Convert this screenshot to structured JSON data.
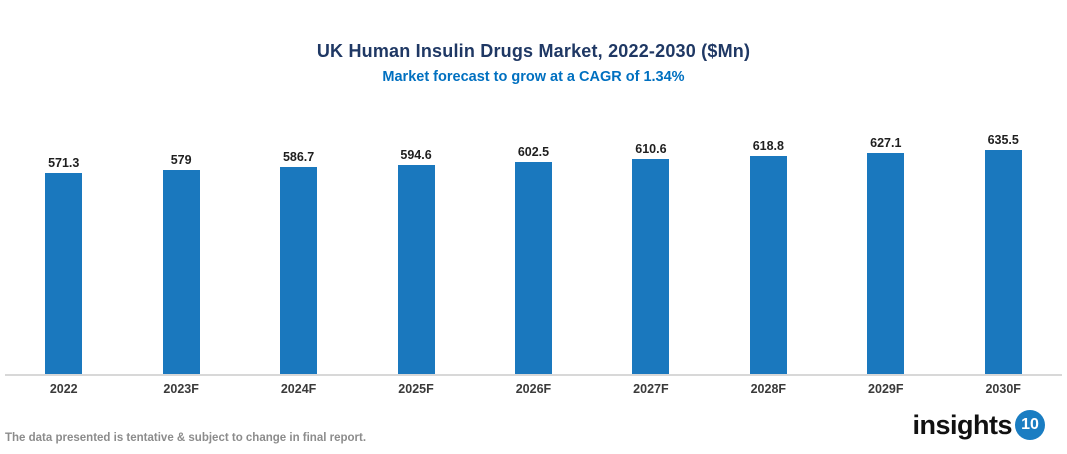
{
  "chart_data": {
    "type": "bar",
    "title": "UK Human Insulin Drugs Market, 2022-2030 ($Mn)",
    "subtitle": "Market forecast to grow at a CAGR of 1.34%",
    "categories": [
      "2022",
      "2023F",
      "2024F",
      "2025F",
      "2026F",
      "2027F",
      "2028F",
      "2029F",
      "2030F"
    ],
    "values": [
      571.3,
      579,
      586.7,
      594.6,
      602.5,
      610.6,
      618.8,
      627.1,
      635.5
    ],
    "value_labels": [
      "571.3",
      "579",
      "586.7",
      "594.6",
      "602.5",
      "610.6",
      "618.8",
      "627.1",
      "635.5"
    ],
    "xlabel": "",
    "ylabel": "",
    "ylim": [
      0,
      650
    ],
    "grid": false,
    "legend": false,
    "bar_color": "#1a78be",
    "axis_line_color": "#d8d8d8"
  },
  "colors": {
    "title": "#1f3864",
    "subtitle": "#0070c0",
    "bar_color": "#1a78be",
    "axis_line_color": "#d8d8d8",
    "label": "#1f1f1f",
    "tick": "#3a3a3a",
    "footer_text": "#8c8c8c",
    "logo_circle": "#1a7dc2"
  },
  "footer": {
    "disclaimer": "The data presented is tentative & subject to change in final report.",
    "logo_text": "insights",
    "logo_number": "10"
  }
}
